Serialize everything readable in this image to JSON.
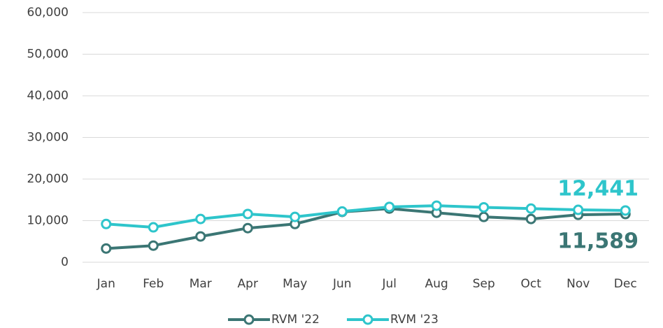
{
  "chart_data": {
    "type": "line",
    "categories": [
      "Jan",
      "Feb",
      "Mar",
      "Apr",
      "May",
      "Jun",
      "Jul",
      "Aug",
      "Sep",
      "Oct",
      "Nov",
      "Dec"
    ],
    "series": [
      {
        "name": "RVM '22",
        "color": "#3b7674",
        "values": [
          3300,
          4000,
          6200,
          8200,
          9200,
          12100,
          12900,
          11900,
          10900,
          10400,
          11400,
          11589
        ],
        "value_labels": [
          null,
          null,
          null,
          null,
          null,
          null,
          null,
          null,
          null,
          null,
          null,
          "11,589"
        ]
      },
      {
        "name": "RVM '23",
        "color": "#2ec5cb",
        "values": [
          9200,
          8400,
          10400,
          11600,
          10900,
          12200,
          13300,
          13600,
          13200,
          12900,
          12600,
          12441
        ],
        "value_labels": [
          null,
          null,
          null,
          null,
          null,
          null,
          null,
          null,
          null,
          null,
          null,
          "12,441"
        ]
      }
    ],
    "ylim": [
      0,
      60000
    ],
    "yticks": [
      0,
      {
        "value": 10000,
        "label": "10,000"
      },
      {
        "value": 20000,
        "label": "20,000"
      },
      {
        "value": 30000,
        "label": "30,000"
      },
      {
        "value": 40000,
        "label": "40,000"
      },
      {
        "value": 50000,
        "label": "50,000"
      },
      {
        "value": 60000,
        "label": "60,000"
      }
    ],
    "grid": true,
    "legend": "bottom"
  }
}
